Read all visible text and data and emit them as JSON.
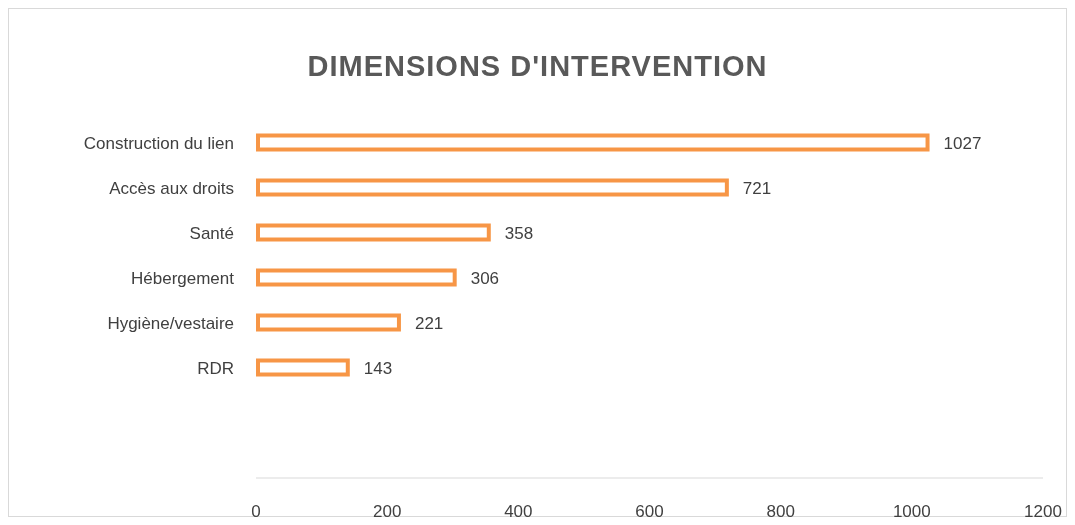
{
  "chart_data": {
    "type": "bar",
    "orientation": "horizontal",
    "title": "DIMENSIONS D'INTERVENTION",
    "categories": [
      "Construction du lien",
      "Accès aux droits",
      "Santé",
      "Hébergement",
      "Hygiène/vestaire",
      "RDR"
    ],
    "values": [
      1027,
      721,
      358,
      306,
      221,
      143
    ],
    "color": "#f79646",
    "xlim": [
      0,
      1200
    ],
    "xticks": [
      0,
      200,
      400,
      600,
      800,
      1000,
      1200
    ],
    "data_labels": true,
    "grid": false
  }
}
